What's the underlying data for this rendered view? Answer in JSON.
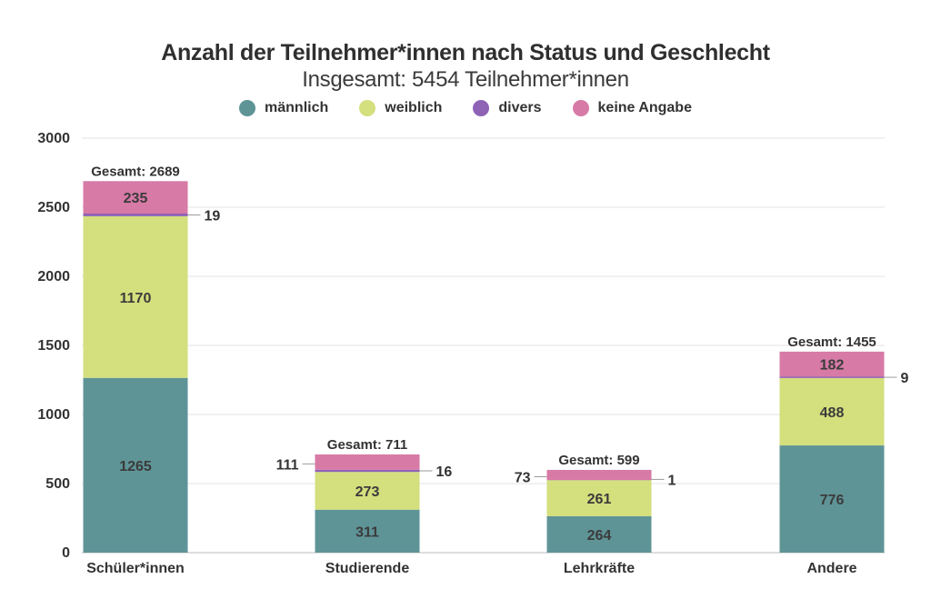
{
  "chart_data": {
    "type": "bar",
    "stacked": true,
    "title": "Anzahl der Teilnehmer*innen nach Status und Geschlecht",
    "subtitle": "Insgesamt: 5454 Teilnehmer*innen",
    "categories": [
      "Schüler*innen",
      "Studierende",
      "Lehrkräfte",
      "Andere"
    ],
    "series": [
      {
        "name": "männlich",
        "color": "#5f9497",
        "values": [
          1265,
          311,
          264,
          776
        ]
      },
      {
        "name": "weiblich",
        "color": "#d4df7d",
        "values": [
          1170,
          273,
          261,
          488
        ]
      },
      {
        "name": "divers",
        "color": "#8e62b5",
        "values": [
          19,
          16,
          1,
          9
        ]
      },
      {
        "name": "keine Angabe",
        "color": "#d77aa6",
        "values": [
          235,
          111,
          73,
          182
        ]
      }
    ],
    "totals": [
      2689,
      711,
      599,
      1455
    ],
    "total_label_prefix": "Gesamt: ",
    "ylim": [
      0,
      3000
    ],
    "yticks": [
      0,
      500,
      1000,
      1500,
      2000,
      2500,
      3000
    ],
    "xlabel": "",
    "ylabel": "",
    "grid": true,
    "legend_position": "top-center"
  }
}
